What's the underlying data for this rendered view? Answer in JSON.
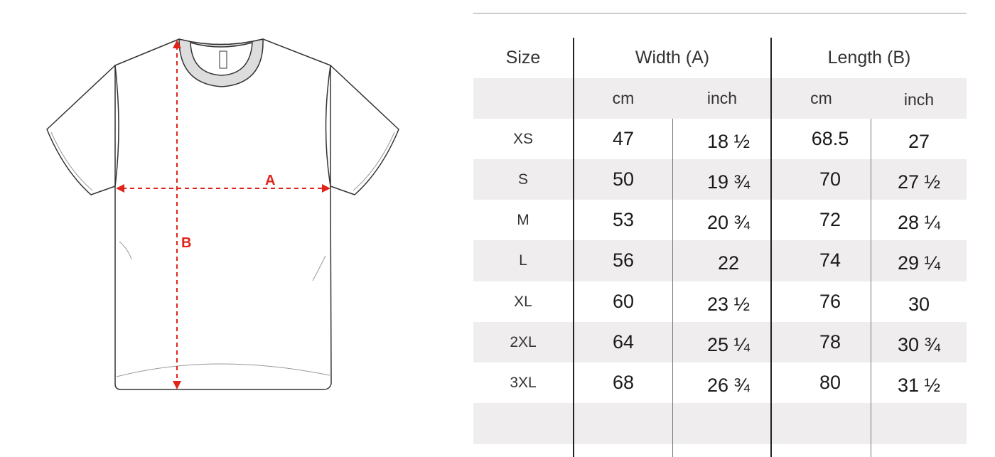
{
  "diagram": {
    "label_a": "A",
    "label_b": "B",
    "accent_color": "#e0241b"
  },
  "table": {
    "headers": {
      "size": "Size",
      "width": "Width (A)",
      "length": "Length (B)"
    },
    "units": {
      "width_cm": "cm",
      "width_inch": "inch",
      "length_cm": "cm",
      "length_inch": "inch"
    },
    "rows": [
      {
        "size": "XS",
        "width_cm": "47",
        "width_inch": "18 ½",
        "length_cm": "68.5",
        "length_inch": "27"
      },
      {
        "size": "S",
        "width_cm": "50",
        "width_inch": "19 ¾",
        "length_cm": "70",
        "length_inch": "27 ½"
      },
      {
        "size": "M",
        "width_cm": "53",
        "width_inch": "20 ¾",
        "length_cm": "72",
        "length_inch": "28 ¼"
      },
      {
        "size": "L",
        "width_cm": "56",
        "width_inch": "22",
        "length_cm": "74",
        "length_inch": "29 ¼"
      },
      {
        "size": "XL",
        "width_cm": "60",
        "width_inch": "23 ½",
        "length_cm": "76",
        "length_inch": "30"
      },
      {
        "size": "2XL",
        "width_cm": "64",
        "width_inch": "25 ¼",
        "length_cm": "78",
        "length_inch": "30 ¾"
      },
      {
        "size": "3XL",
        "width_cm": "68",
        "width_inch": "26 ¾",
        "length_cm": "80",
        "length_inch": "31 ½"
      }
    ]
  }
}
